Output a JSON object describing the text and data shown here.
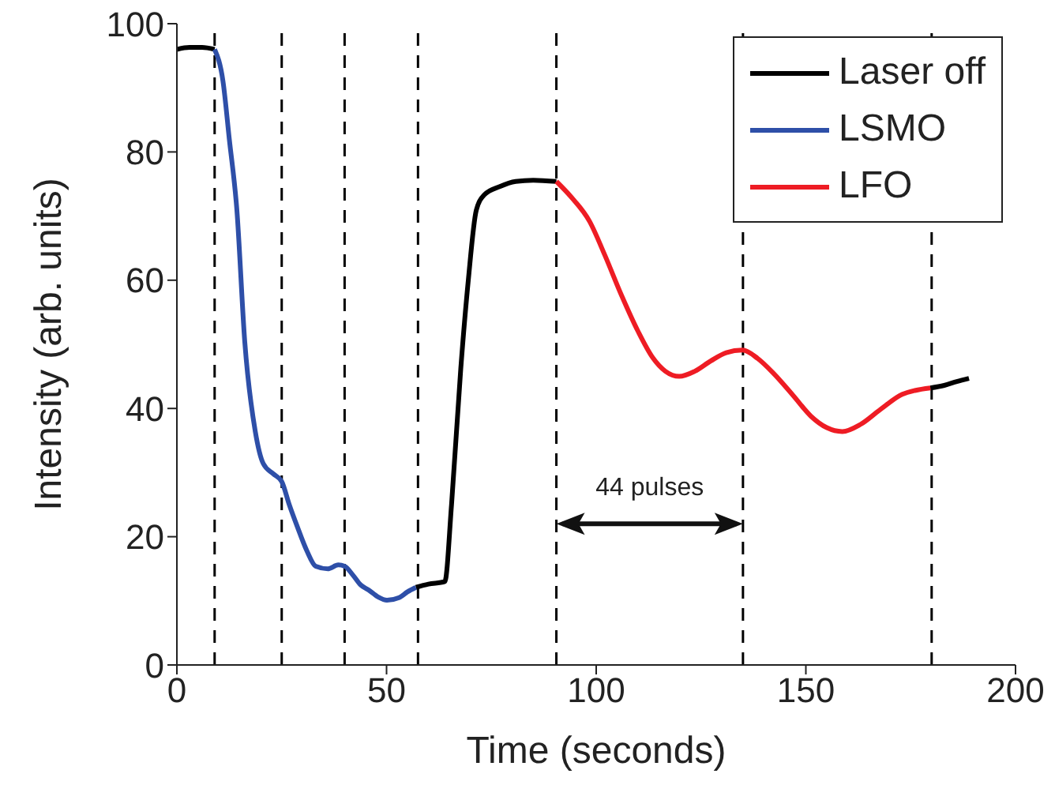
{
  "chart_data": {
    "type": "line",
    "xlabel": "Time (seconds)",
    "ylabel": "Intensity (arb. units)",
    "xlim": [
      0,
      200
    ],
    "xticks": [
      0,
      50,
      100,
      150,
      200
    ],
    "ylim": [
      0,
      100
    ],
    "yticks": [
      0,
      20,
      40,
      60,
      80,
      100
    ],
    "legend": "top right",
    "line_style": "solid",
    "series": [
      {
        "name": "Laser off",
        "color": "#000000",
        "x": [
          0,
          3,
          6,
          9,
          null,
          57,
          60,
          63.9,
          65.5,
          67.7,
          69.5,
          71.4,
          73.3,
          77,
          80.8,
          85,
          90.5,
          null,
          179.7,
          183,
          186,
          188.9
        ],
        "values": [
          96,
          96.3,
          96.3,
          96,
          null,
          12.1,
          12.6,
          13,
          25,
          46.2,
          60,
          70.9,
          73.3,
          74.6,
          75.4,
          75.6,
          75.4,
          null,
          43.2,
          43.6,
          44.2,
          44.7
        ]
      },
      {
        "name": "LSMO",
        "color": "#2e4fa8",
        "x": [
          9,
          11,
          12.5,
          14.3,
          16.2,
          18.7,
          20.6,
          23,
          25,
          26.8,
          28.7,
          31,
          33.1,
          36,
          38.5,
          40,
          42,
          43.8,
          45.7,
          48,
          50.1,
          53,
          55,
          57
        ],
        "values": [
          96,
          91,
          82,
          71,
          50.3,
          36.4,
          31.4,
          29.8,
          28.6,
          25,
          21.6,
          17.8,
          15.4,
          15,
          15.6,
          15.4,
          14,
          12.5,
          11.7,
          10.6,
          10.1,
          10.5,
          11.4,
          12.1
        ]
      },
      {
        "name": "LFO",
        "color": "#ee1c24",
        "x": [
          90.5,
          94,
          98.4,
          102,
          106,
          110,
          113.5,
          116.5,
          119.8,
          123.5,
          127.3,
          131,
          134.9,
          138.5,
          142.4,
          147,
          151.2,
          155,
          158.7,
          163,
          167.5,
          173,
          176,
          179.7
        ],
        "values": [
          75.4,
          73,
          69.2,
          64,
          57.7,
          52,
          47.9,
          45.8,
          45,
          45.8,
          47.4,
          48.7,
          49.1,
          47.8,
          45.4,
          42,
          38.8,
          37,
          36.4,
          37.5,
          39.7,
          42.2,
          42.8,
          43.2
        ]
      }
    ],
    "ref_lines": [
      {
        "axis": "x",
        "value": 9,
        "color": "#000000",
        "line_style": "dashed"
      },
      {
        "axis": "x",
        "value": 25,
        "color": "#000000",
        "line_style": "dashed"
      },
      {
        "axis": "x",
        "value": 40,
        "color": "#000000",
        "line_style": "dashed"
      },
      {
        "axis": "x",
        "value": 57.5,
        "color": "#000000",
        "line_style": "dashed"
      },
      {
        "axis": "x",
        "value": 90.5,
        "color": "#000000",
        "line_style": "dashed"
      },
      {
        "axis": "x",
        "value": 135,
        "color": "#000000",
        "line_style": "dashed"
      },
      {
        "axis": "x",
        "value": 180,
        "color": "#000000",
        "line_style": "dashed"
      }
    ],
    "annotations": [
      "44 pulses"
    ]
  }
}
